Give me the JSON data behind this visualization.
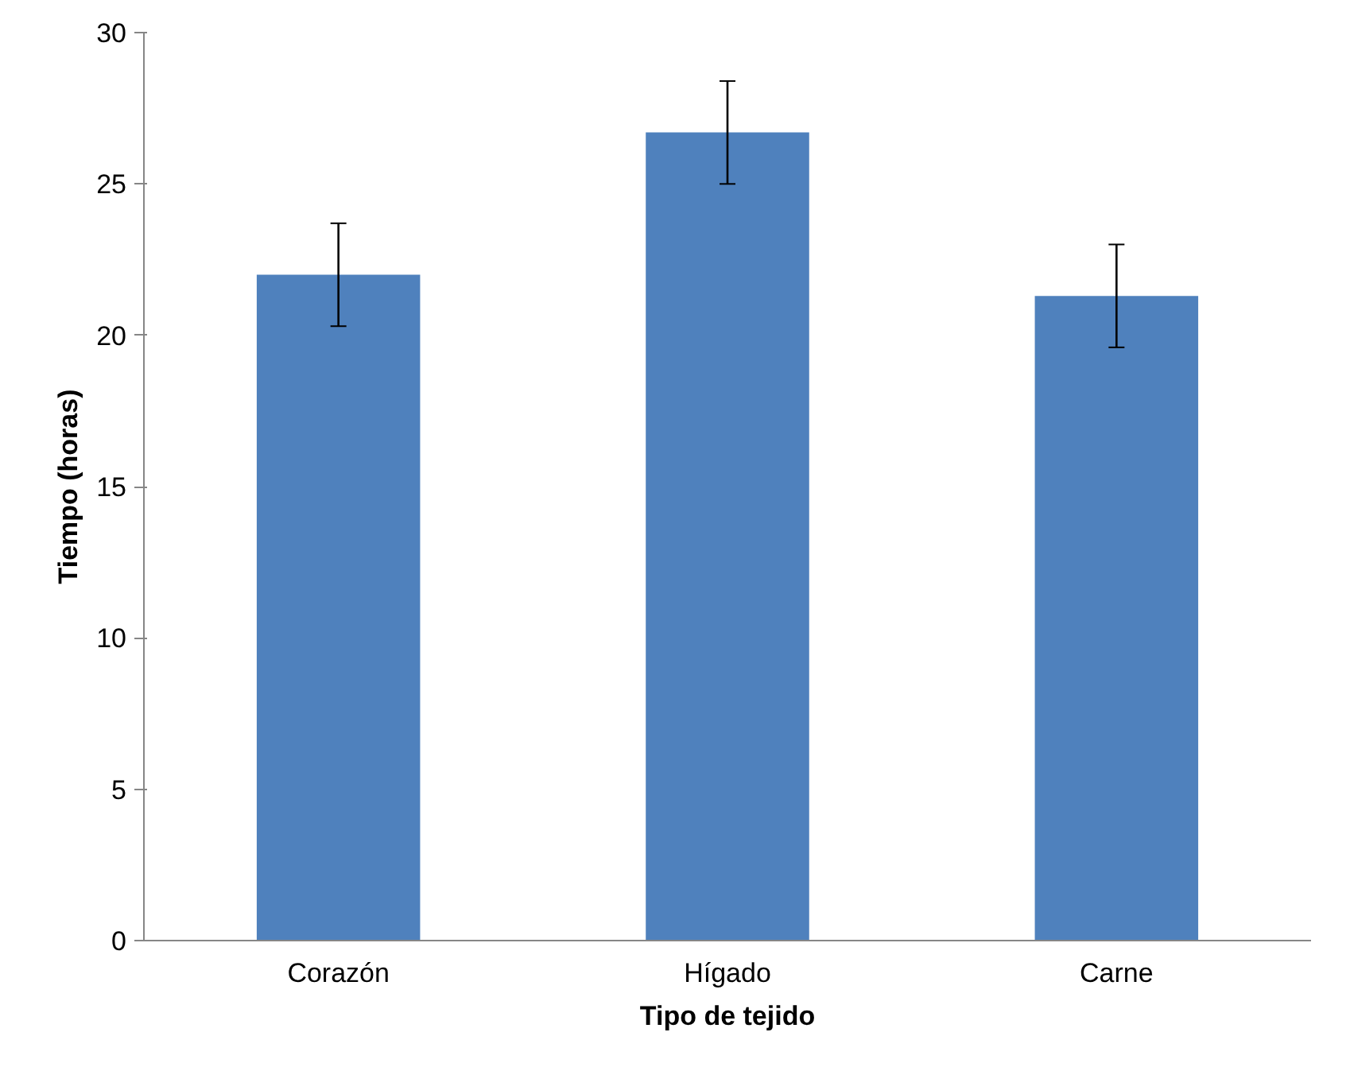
{
  "chart_data": {
    "type": "bar",
    "xlabel": "Tipo de tejido",
    "ylabel": "Tiempo (horas)",
    "categories": [
      "Corazón",
      "Hígado",
      "Carne"
    ],
    "values": [
      22.0,
      26.7,
      21.3
    ],
    "errors": [
      1.7,
      1.7,
      1.7
    ],
    "color": "#4f81bd",
    "ylim": [
      0,
      30
    ],
    "yticks": [
      0,
      5,
      10,
      15,
      20,
      25,
      30
    ],
    "grid": false
  }
}
